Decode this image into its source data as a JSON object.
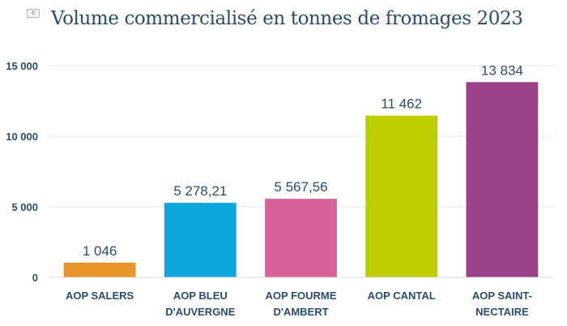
{
  "badge": "0",
  "chart_data": {
    "type": "bar",
    "title": "Volume commercialisé en tonnes de fromages 2023",
    "xlabel": "",
    "ylabel": "",
    "ylim": [
      0,
      15000
    ],
    "yticks": [
      0,
      5000,
      10000,
      15000
    ],
    "ytick_labels": [
      "0",
      "5 000",
      "10 000",
      "15 000"
    ],
    "grid": true,
    "legend": "none",
    "categories": [
      [
        "AOP SALERS"
      ],
      [
        "AOP BLEU",
        "D'AUVERGNE"
      ],
      [
        "AOP FOURME",
        "D'AMBERT"
      ],
      [
        "AOP CANTAL"
      ],
      [
        "AOP SAINT-",
        "NECTAIRE"
      ]
    ],
    "values": [
      1046,
      5278.21,
      5567.56,
      11462,
      13834
    ],
    "data_labels": [
      "1 046",
      "5 278,21",
      "5 567,56",
      "11 462",
      "13 834"
    ],
    "colors": [
      "#ea952b",
      "#0ba6da",
      "#d95f9a",
      "#bccd00",
      "#9b418c"
    ],
    "text_color": "#2a4d6e",
    "grid_color": "#e3e3e3"
  }
}
